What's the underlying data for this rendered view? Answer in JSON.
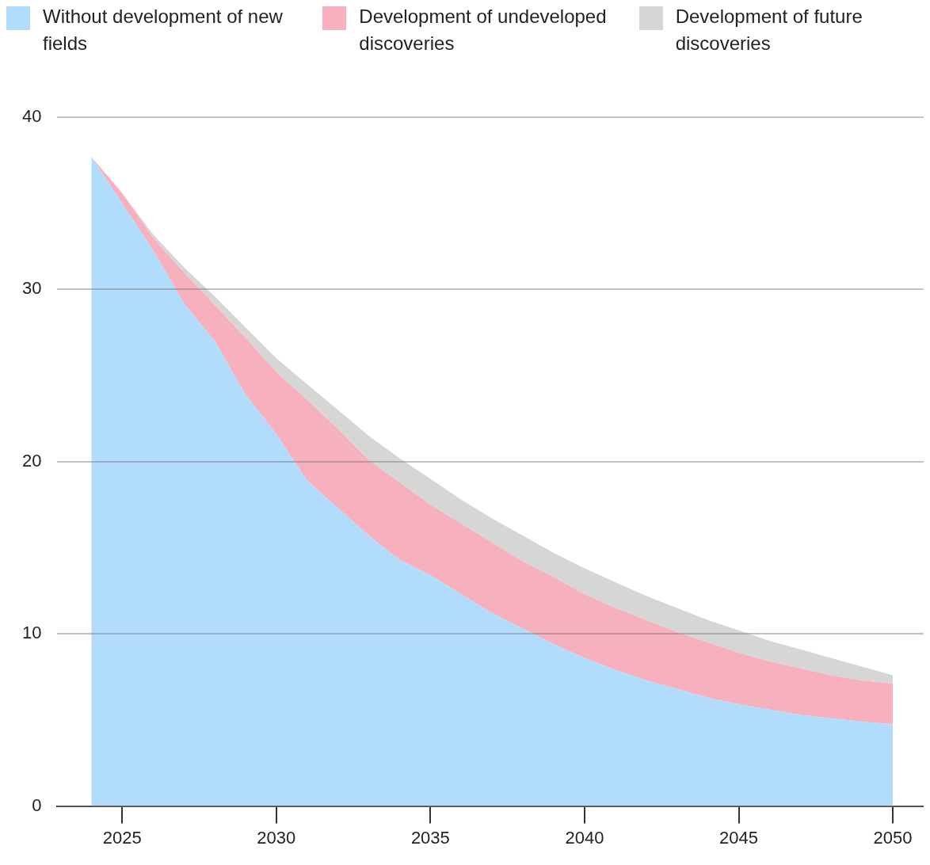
{
  "chart_data": {
    "type": "area",
    "stacked": true,
    "x": [
      2024,
      2025,
      2026,
      2027,
      2028,
      2029,
      2030,
      2031,
      2032,
      2033,
      2034,
      2035,
      2036,
      2037,
      2038,
      2039,
      2040,
      2041,
      2042,
      2043,
      2044,
      2045,
      2046,
      2047,
      2048,
      2049,
      2050
    ],
    "series": [
      {
        "name": "Without development of new fields",
        "color": "#b1dcfc",
        "values": [
          37.7,
          35.0,
          32.3,
          29.2,
          27.0,
          23.9,
          21.6,
          18.9,
          17.3,
          15.7,
          14.3,
          13.4,
          12.3,
          11.2,
          10.3,
          9.4,
          8.6,
          7.9,
          7.3,
          6.8,
          6.3,
          5.9,
          5.6,
          5.3,
          5.1,
          4.9,
          4.75
        ]
      },
      {
        "name": "Development of undeveloped discoveries",
        "color": "#f7b0bd",
        "values": [
          0,
          0.6,
          0.7,
          1.8,
          2.1,
          3.3,
          3.6,
          4.7,
          4.6,
          4.4,
          4.5,
          4.1,
          4.1,
          4.1,
          3.9,
          3.9,
          3.7,
          3.6,
          3.5,
          3.3,
          3.2,
          3.0,
          2.8,
          2.7,
          2.5,
          2.4,
          2.35
        ]
      },
      {
        "name": "Development of future discoveries",
        "color": "#d6d6d6",
        "values": [
          0,
          0,
          0.2,
          0.3,
          0.5,
          0.6,
          0.8,
          0.9,
          1.1,
          1.4,
          1.4,
          1.5,
          1.4,
          1.4,
          1.5,
          1.4,
          1.5,
          1.5,
          1.4,
          1.4,
          1.3,
          1.3,
          1.2,
          1.1,
          1.0,
          0.8,
          0.5
        ]
      }
    ],
    "xlim": [
      2022.9,
      2051
    ],
    "xticks": [
      2025,
      2030,
      2035,
      2040,
      2045,
      2050
    ],
    "ylim": [
      0,
      40
    ],
    "yticks": [
      0,
      10,
      20,
      30,
      40
    ],
    "grid": "y",
    "legend": "top"
  }
}
